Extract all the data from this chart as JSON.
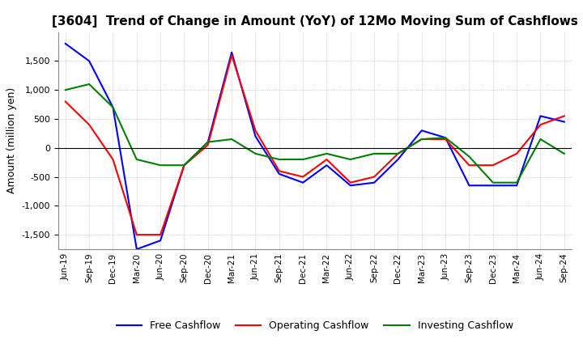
{
  "title": "[3604]  Trend of Change in Amount (YoY) of 12Mo Moving Sum of Cashflows",
  "ylabel": "Amount (million yen)",
  "ylim": [
    -1750,
    2000
  ],
  "yticks": [
    -1500,
    -1000,
    -500,
    0,
    500,
    1000,
    1500
  ],
  "x_labels": [
    "Jun-19",
    "Sep-19",
    "Dec-19",
    "Mar-20",
    "Jun-20",
    "Sep-20",
    "Dec-20",
    "Mar-21",
    "Jun-21",
    "Sep-21",
    "Dec-21",
    "Mar-22",
    "Jun-22",
    "Sep-22",
    "Dec-22",
    "Mar-23",
    "Jun-23",
    "Sep-23",
    "Dec-23",
    "Mar-24",
    "Jun-24",
    "Sep-24"
  ],
  "operating": [
    800,
    400,
    -200,
    -1500,
    -1500,
    -300,
    50,
    1600,
    300,
    -400,
    -500,
    -200,
    -600,
    -500,
    -100,
    150,
    150,
    -300,
    -300,
    -100,
    400,
    550
  ],
  "investing": [
    1000,
    1100,
    700,
    -200,
    -300,
    -300,
    100,
    150,
    -100,
    -200,
    -200,
    -100,
    -200,
    -100,
    -100,
    150,
    175,
    -150,
    -600,
    -600,
    150,
    -100
  ],
  "free": [
    1800,
    1500,
    700,
    -1750,
    -1600,
    -300,
    100,
    1650,
    200,
    -450,
    -600,
    -300,
    -650,
    -600,
    -200,
    300,
    175,
    -650,
    -650,
    -650,
    550,
    450
  ],
  "colors": {
    "operating": "#ff0000",
    "investing": "#008000",
    "free": "#0000ff"
  },
  "legend_labels": [
    "Operating Cashflow",
    "Investing Cashflow",
    "Free Cashflow"
  ],
  "background_color": "#ffffff",
  "grid_color": "#aaaaaa"
}
